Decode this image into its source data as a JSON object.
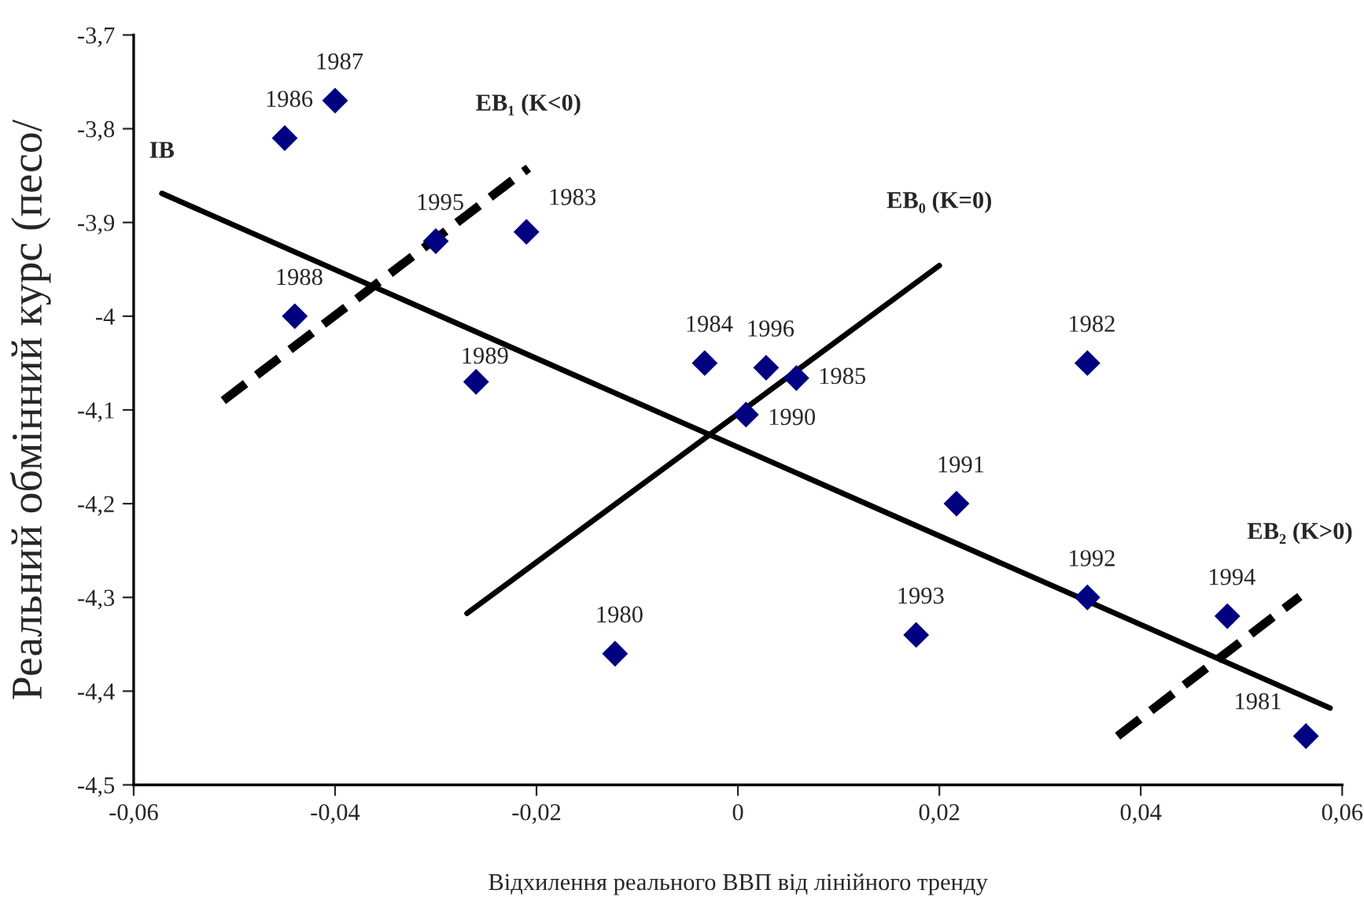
{
  "chart_data": {
    "type": "scatter",
    "xlabel": "Відхилення реального ВВП від лінійного тренду",
    "ylabel": "Реальний обмінний курс (песо/",
    "xlim": [
      -0.06,
      0.06
    ],
    "ylim": [
      -4.5,
      -3.7
    ],
    "xticks": [
      {
        "value": -0.06,
        "label": "-0,06"
      },
      {
        "value": -0.04,
        "label": "-0,04"
      },
      {
        "value": -0.02,
        "label": "-0,02"
      },
      0,
      {
        "value": 0.02,
        "label": "0,02"
      },
      {
        "value": 0.04,
        "label": "0,04"
      },
      {
        "value": 0.06,
        "label": "0,06"
      }
    ],
    "yticks": [
      {
        "value": -4.5,
        "label": "-4,5"
      },
      {
        "value": -4.4,
        "label": "-4,4"
      },
      {
        "value": -4.3,
        "label": "-4,3"
      },
      {
        "value": -4.2,
        "label": "-4,2"
      },
      {
        "value": -4.1,
        "label": "-4,1"
      },
      {
        "value": -4,
        "label": "-4"
      },
      {
        "value": -3.9,
        "label": "-3,9"
      },
      {
        "value": -3.8,
        "label": "-3,8"
      },
      {
        "value": -3.7,
        "label": "-3,7"
      }
    ],
    "grid": false,
    "series": [
      {
        "color": "#000080",
        "marker": "diamond",
        "x": [
          -0.045,
          -0.04,
          -0.03,
          -0.021,
          -0.044,
          -0.026,
          -0.0033,
          0.0028,
          0.0058,
          0.0008,
          0.0347,
          0.0217,
          0.0347,
          0.0177,
          0.0486,
          0.0564,
          -0.0122
        ],
        "values": [
          -3.81,
          -3.77,
          -3.92,
          -3.91,
          -4.0,
          -4.07,
          -4.05,
          -4.055,
          -4.066,
          -4.105,
          -4.05,
          -4.2,
          -4.3,
          -4.34,
          -4.32,
          -4.448,
          -4.36
        ]
      },
      {
        "type": "line",
        "name": "IB",
        "color": "#000000",
        "line_style": "solid",
        "x": [
          -0.0572,
          0.0588
        ],
        "values": [
          -3.869,
          -4.418
        ]
      },
      {
        "type": "line",
        "name": "EB₀ (K=0)",
        "color": "#000000",
        "line_style": "solid",
        "x": [
          -0.0269,
          0.02
        ],
        "values": [
          -4.317,
          -3.946
        ]
      },
      {
        "type": "line",
        "name": "EB₁ (K<0)",
        "color": "#000000",
        "line_style": "dashed",
        "x": [
          -0.0511,
          -0.0208
        ],
        "values": [
          -4.09,
          -3.842
        ]
      },
      {
        "type": "line",
        "name": "EB₂ (K>0)",
        "color": "#000000",
        "line_style": "dashed",
        "x": [
          0.0377,
          0.0558
        ],
        "values": [
          -4.448,
          -4.299
        ]
      }
    ],
    "annotations": [
      {
        "text": "1986",
        "x": -0.045,
        "y": -3.81
      },
      {
        "text": "1987",
        "x": -0.04,
        "y": -3.77
      },
      {
        "text": "1995",
        "x": -0.03,
        "y": -3.92
      },
      {
        "text": "1983",
        "x": -0.021,
        "y": -3.91
      },
      {
        "text": "1988",
        "x": -0.044,
        "y": -4.0
      },
      {
        "text": "1989",
        "x": -0.026,
        "y": -4.07
      },
      {
        "text": "1984",
        "x": -0.0033,
        "y": -4.05
      },
      {
        "text": "1996",
        "x": 0.0028,
        "y": -4.055
      },
      {
        "text": "1985",
        "x": 0.0058,
        "y": -4.066
      },
      {
        "text": "1990",
        "x": 0.0008,
        "y": -4.105
      },
      {
        "text": "1982",
        "x": 0.0347,
        "y": -4.05
      },
      {
        "text": "1991",
        "x": 0.0217,
        "y": -4.2
      },
      {
        "text": "1992",
        "x": 0.0347,
        "y": -4.3
      },
      {
        "text": "1993",
        "x": 0.0177,
        "y": -4.34
      },
      {
        "text": "1994",
        "x": 0.0486,
        "y": -4.32
      },
      {
        "text": "1981",
        "x": 0.0564,
        "y": -4.448
      },
      {
        "text": "1980",
        "x": -0.0122,
        "y": -4.36
      }
    ]
  }
}
